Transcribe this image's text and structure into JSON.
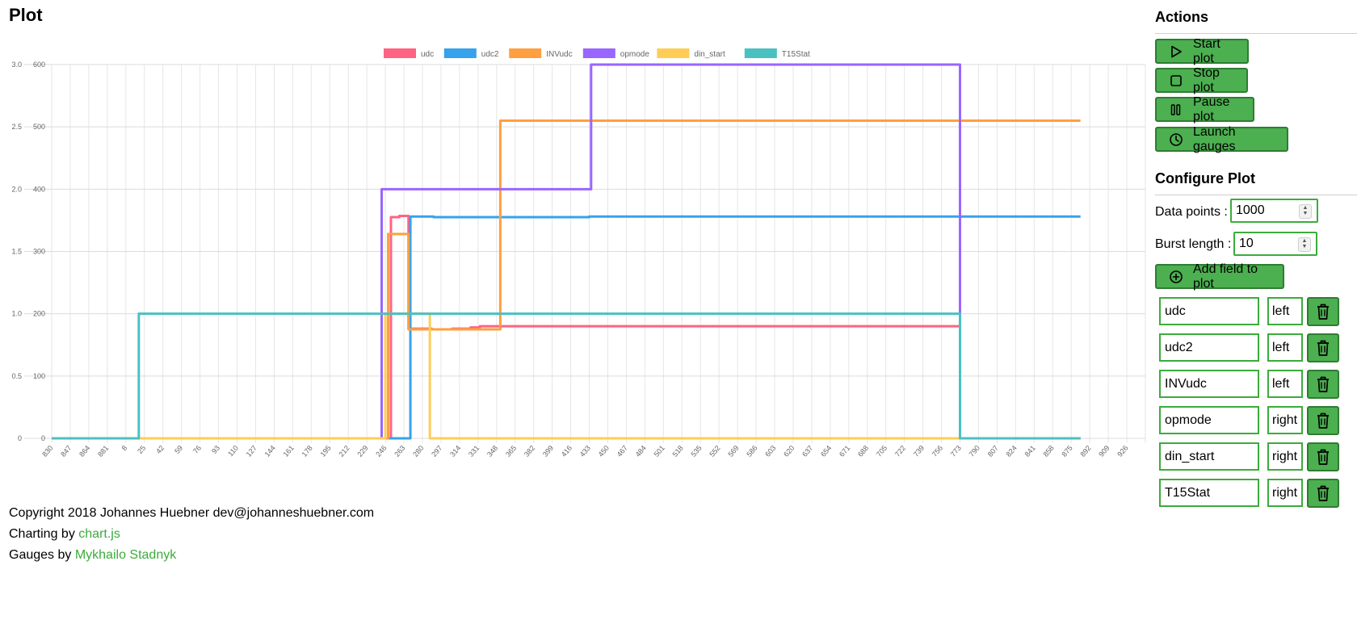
{
  "page": {
    "title": "Plot"
  },
  "chart_data": {
    "type": "line",
    "stepped": true,
    "legend_position": "top",
    "grid": true,
    "x_categories": [
      "830",
      "847",
      "864",
      "881",
      "8",
      "25",
      "42",
      "59",
      "76",
      "93",
      "110",
      "127",
      "144",
      "161",
      "178",
      "195",
      "212",
      "229",
      "246",
      "263",
      "280",
      "297",
      "314",
      "331",
      "348",
      "365",
      "382",
      "399",
      "416",
      "433",
      "450",
      "467",
      "484",
      "501",
      "518",
      "535",
      "552",
      "569",
      "586",
      "603",
      "620",
      "637",
      "654",
      "671",
      "688",
      "705",
      "722",
      "739",
      "756",
      "773",
      "790",
      "807",
      "824",
      "841",
      "858",
      "875",
      "892",
      "909",
      "926"
    ],
    "y_left": {
      "min": 0,
      "max": 600,
      "ticks": [
        "0",
        "100",
        "200",
        "300",
        "400",
        "500",
        "600"
      ]
    },
    "y_right": {
      "min": 0,
      "max": 3.0,
      "ticks": [
        "0",
        "0.5",
        "1.0",
        "1.5",
        "2.0",
        "2.5",
        "3.0"
      ]
    },
    "series": [
      {
        "name": "udc",
        "color": "#ff6384",
        "axis": "left",
        "points": [
          [
            0,
            0
          ],
          [
            18.1,
            0
          ],
          [
            18.3,
            355
          ],
          [
            18.75,
            357
          ],
          [
            19.1,
            357
          ],
          [
            19.25,
            176
          ],
          [
            20.5,
            175
          ],
          [
            21.6,
            176
          ],
          [
            22.6,
            178
          ],
          [
            23.1,
            180
          ],
          [
            48.9,
            180
          ],
          [
            49.0,
            0
          ],
          [
            55.5,
            0
          ]
        ]
      },
      {
        "name": "udc2",
        "color": "#36a2eb",
        "axis": "left",
        "points": [
          [
            0,
            0
          ],
          [
            19.2,
            0
          ],
          [
            19.35,
            356
          ],
          [
            20.6,
            355
          ],
          [
            29,
            356
          ],
          [
            55.5,
            356
          ]
        ]
      },
      {
        "name": "INVudc",
        "color": "#ff9f40",
        "axis": "left",
        "points": [
          [
            0,
            0
          ],
          [
            18.0,
            0
          ],
          [
            18.15,
            328
          ],
          [
            19.1,
            328
          ],
          [
            19.25,
            175
          ],
          [
            21.1,
            175
          ],
          [
            24.1,
            175
          ],
          [
            24.2,
            510
          ],
          [
            55.5,
            510
          ]
        ]
      },
      {
        "name": "opmode",
        "color": "#9966ff",
        "axis": "right",
        "points": [
          [
            0,
            0
          ],
          [
            17.7,
            0
          ],
          [
            17.8,
            2.0
          ],
          [
            29.0,
            2.0
          ],
          [
            29.1,
            3.0
          ],
          [
            48.9,
            3.0
          ],
          [
            49.0,
            0
          ],
          [
            55.5,
            0
          ]
        ]
      },
      {
        "name": "din_start",
        "color": "#ffcd56",
        "axis": "right",
        "points": [
          [
            0,
            0
          ],
          [
            17.9,
            0
          ],
          [
            18.0,
            1.0
          ],
          [
            20.3,
            1.0
          ],
          [
            20.4,
            0
          ],
          [
            55.5,
            0
          ]
        ]
      },
      {
        "name": "T15Stat",
        "color": "#4bc0c0",
        "axis": "right",
        "points": [
          [
            0,
            0
          ],
          [
            4.6,
            0
          ],
          [
            4.7,
            1.0
          ],
          [
            48.9,
            1.0
          ],
          [
            49.0,
            0
          ],
          [
            55.5,
            0
          ]
        ]
      }
    ]
  },
  "footer": {
    "copyright": "Copyright 2018 Johannes Huebner dev@johanneshuebner.com",
    "charting_prefix": "Charting by ",
    "charting_link": "chart.js",
    "gauges_prefix": "Gauges by ",
    "gauges_link": "Mykhailo Stadnyk"
  },
  "actions": {
    "heading": "Actions",
    "start": "Start plot",
    "stop": "Stop plot",
    "pause": "Pause plot",
    "gauges": "Launch gauges"
  },
  "configure": {
    "heading": "Configure Plot",
    "data_points_label": "Data points :",
    "data_points_value": "1000",
    "burst_length_label": "Burst length :",
    "burst_length_value": "10",
    "add_field": "Add field to plot"
  },
  "fields": [
    {
      "name": "udc",
      "axis": "left"
    },
    {
      "name": "udc2",
      "axis": "left"
    },
    {
      "name": "INVudc",
      "axis": "left"
    },
    {
      "name": "opmode",
      "axis": "right"
    },
    {
      "name": "din_start",
      "axis": "right"
    },
    {
      "name": "T15Stat",
      "axis": "right"
    }
  ],
  "icons": {
    "start": "play-icon",
    "stop": "stop-square-icon",
    "pause": "pause-icon",
    "gauges": "clock-icon",
    "add": "plus-circle-icon",
    "delete": "trash-icon"
  },
  "colors": {
    "accent": "#4caf50",
    "accent_border": "#2e7d32",
    "field_border": "#3cab3c"
  }
}
